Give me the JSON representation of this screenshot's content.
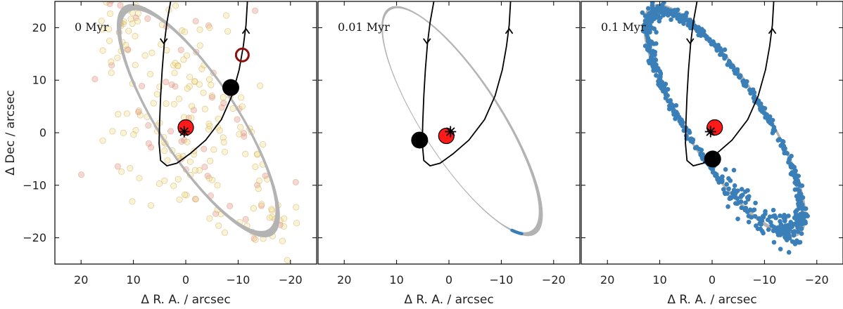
{
  "chart_data": {
    "type": "scatter",
    "xlabel": "Δ R. A. / arcsec",
    "ylabel": "Δ Dec / arcsec",
    "xlim": [
      25,
      -25
    ],
    "ylim": [
      -25,
      25
    ],
    "xticks": [
      20,
      10,
      0,
      -10,
      -20
    ],
    "yticks": [
      20,
      10,
      0,
      -10,
      -20
    ],
    "xtick_labels": [
      "20",
      "10",
      "0",
      "−10",
      "−20"
    ],
    "ytick_labels": [
      "20",
      "10",
      "0",
      "−10",
      "−20"
    ],
    "colors": {
      "ring": "#b3b3b3",
      "orbit": "#000000",
      "particles": "#3a7fb8",
      "cloud_fill": "#f2e08a",
      "cloud_edge": "#c79a4a",
      "cloud_pink": "#e58a8a",
      "red_body": "#ff1a1a",
      "marker_ring": "#8b1010"
    },
    "panels": [
      {
        "title": "0 Myr",
        "black_body": [
          -8.6,
          8.6
        ],
        "red_body": [
          0,
          1.0
        ],
        "star": [
          0.3,
          0.2
        ],
        "highlight_marker": [
          -10.8,
          14.8
        ],
        "ring_arc": "full",
        "particles": "initial_cloud"
      },
      {
        "title": "0.01 Myr",
        "black_body": [
          5.6,
          -1.4
        ],
        "red_body": [
          0.5,
          -0.6
        ],
        "star": [
          -0.3,
          0.2
        ],
        "ring_arc": "segment",
        "particles": "short_arc"
      },
      {
        "title": "0.1 Myr",
        "black_body": [
          -0.1,
          -5.0
        ],
        "red_body": [
          -0.5,
          1.0
        ],
        "star": [
          0.3,
          0.2
        ],
        "ring_arc": "full",
        "particles": "full_ring"
      }
    ]
  }
}
